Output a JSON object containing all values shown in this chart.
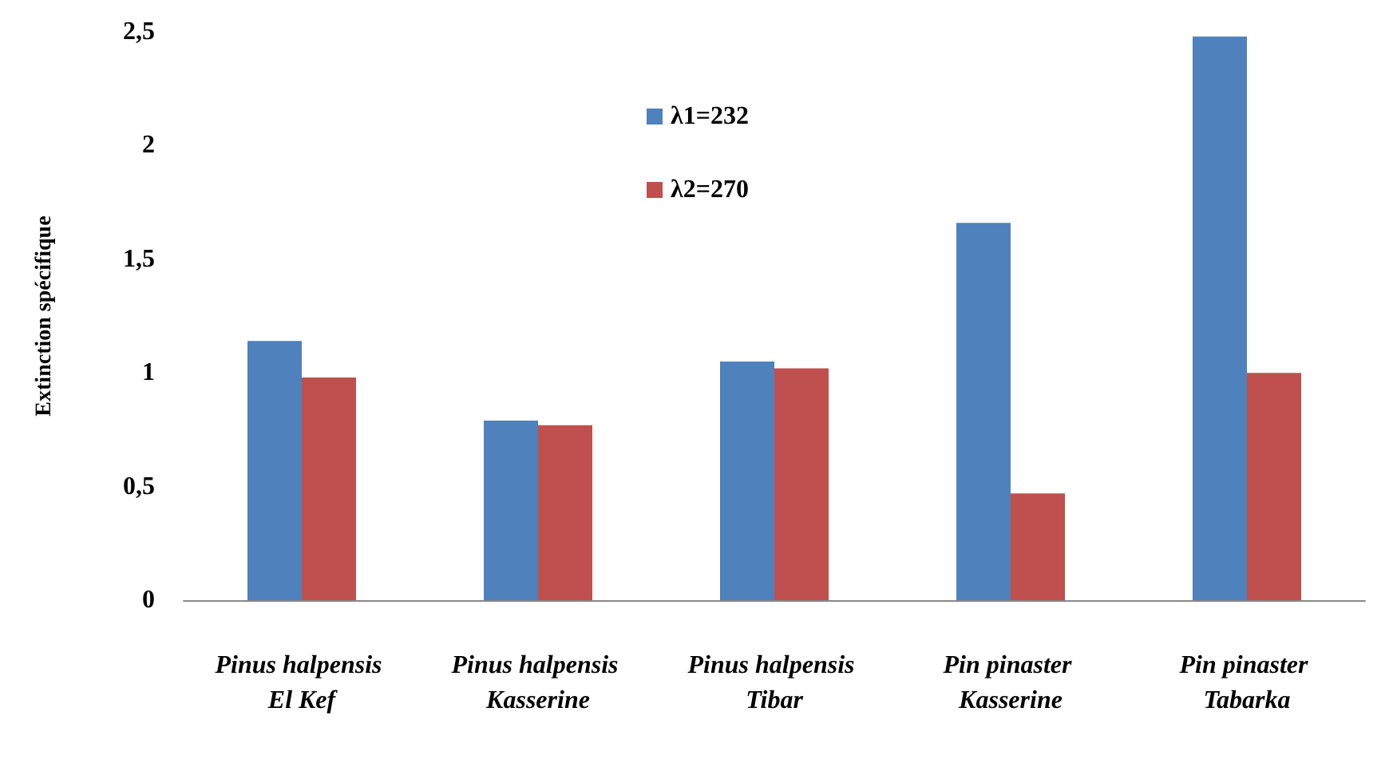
{
  "chart_data": {
    "type": "bar",
    "ylabel": "Extinction spécifique",
    "categories": [
      "Pinus halpensis El Kef",
      "Pinus halpensis Kasserine",
      "Pinus halpensis Tibar",
      "Pin pinaster Kasserine",
      "Pin pinaster Tabarka"
    ],
    "series": [
      {
        "name": "λ1=232",
        "color": "#4f81bd",
        "values": [
          1.14,
          0.79,
          1.05,
          1.66,
          2.48
        ]
      },
      {
        "name": "λ2=270",
        "color": "#c0504d",
        "values": [
          0.98,
          0.77,
          1.02,
          0.47,
          1.0
        ]
      }
    ],
    "ylim": [
      0,
      2.5
    ],
    "yticks": [
      0,
      {
        "value": 0.5,
        "label": "0,5"
      },
      1,
      {
        "value": 1.5,
        "label": "1,5"
      },
      2,
      {
        "value": 2.5,
        "label": "2,5"
      }
    ],
    "grid": false,
    "legend": "top"
  }
}
